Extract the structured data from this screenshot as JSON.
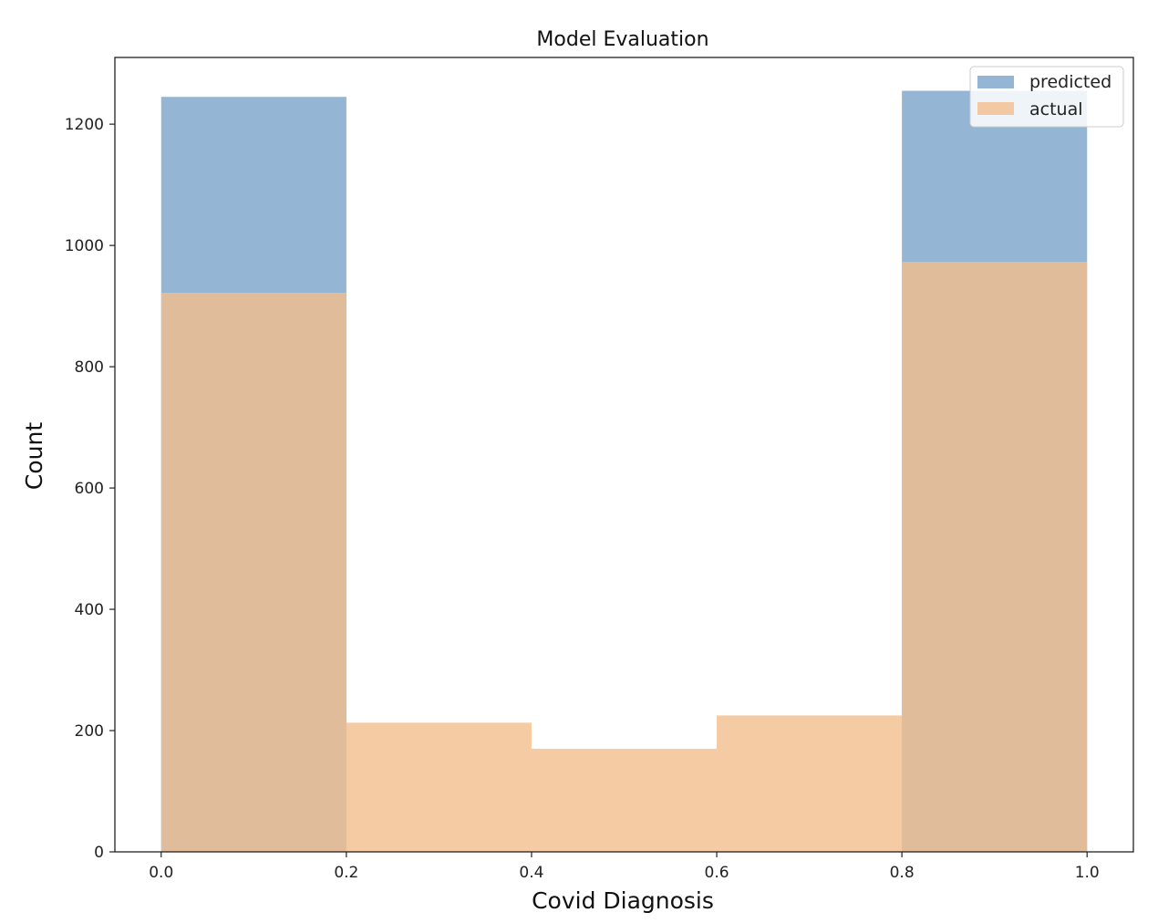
{
  "chart_data": {
    "type": "bar",
    "title": "Model Evaluation",
    "xlabel": "Covid Diagnosis",
    "ylabel": "Count",
    "xlim": [
      -0.05,
      1.05
    ],
    "ylim": [
      0,
      1310
    ],
    "xticks": [
      "0.0",
      "0.2",
      "0.4",
      "0.6",
      "0.8",
      "1.0"
    ],
    "yticks": [
      "0",
      "200",
      "400",
      "600",
      "800",
      "1000",
      "1200"
    ],
    "grid": false,
    "legend_position": "top-right",
    "series": [
      {
        "name": "predicted",
        "color": "#7ba3c9",
        "bins": [
          {
            "x0": 0.0,
            "x1": 0.2,
            "value": 1245
          },
          {
            "x0": 0.8,
            "x1": 1.0,
            "value": 1255
          }
        ]
      },
      {
        "name": "actual",
        "color": "#f3be8c",
        "bins": [
          {
            "x0": 0.0,
            "x1": 0.2,
            "value": 922
          },
          {
            "x0": 0.2,
            "x1": 0.4,
            "value": 213
          },
          {
            "x0": 0.4,
            "x1": 0.6,
            "value": 170
          },
          {
            "x0": 0.6,
            "x1": 0.8,
            "value": 225
          },
          {
            "x0": 0.8,
            "x1": 1.0,
            "value": 973
          }
        ]
      }
    ]
  }
}
